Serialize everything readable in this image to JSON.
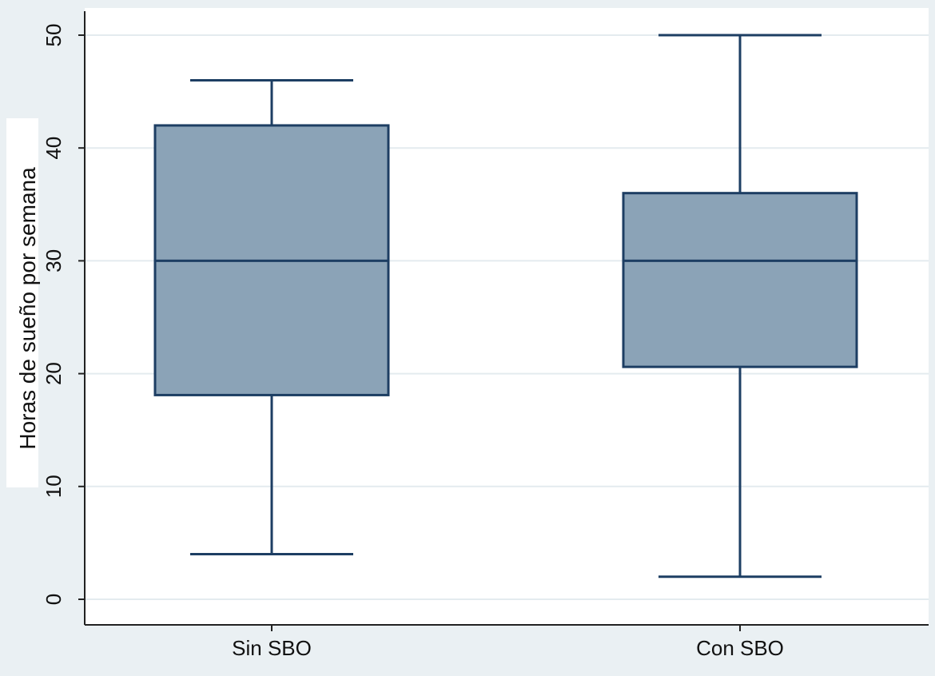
{
  "chart_data": {
    "type": "box",
    "ylabel": "Horas de sueño por semana",
    "xlabel": "",
    "ylim": [
      0,
      50
    ],
    "yticks": [
      0,
      10,
      20,
      30,
      40,
      50
    ],
    "grid": true,
    "categories": [
      "Sin SBO",
      "Con SBO"
    ],
    "boxes": [
      {
        "category": "Sin SBO",
        "min": 4,
        "q1": 18.1,
        "median": 30,
        "q3": 42,
        "max": 46
      },
      {
        "category": "Con SBO",
        "min": 2,
        "q1": 20.6,
        "median": 30,
        "q3": 36,
        "max": 50
      }
    ],
    "colors": {
      "box_fill": "#8ba3b7",
      "box_stroke": "#1d3e63",
      "grid": "#e4ebef",
      "plot_bg": "#ffffff",
      "outer_bg": "#eaf0f3",
      "axis": "#222222"
    }
  }
}
